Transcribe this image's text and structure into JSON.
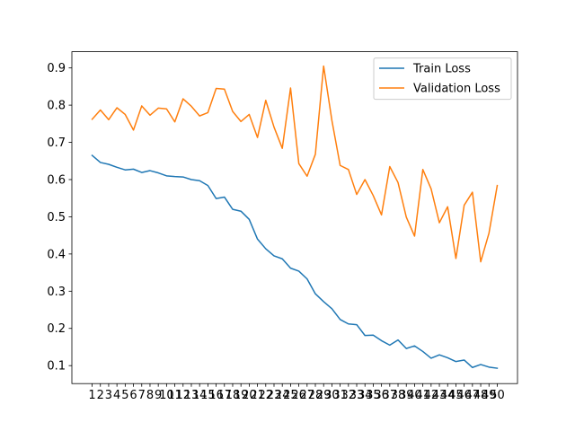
{
  "chart_data": {
    "type": "line",
    "title": "",
    "xlabel": "",
    "ylabel": "",
    "x": [
      1,
      2,
      3,
      4,
      5,
      6,
      7,
      8,
      9,
      10,
      11,
      12,
      13,
      14,
      15,
      16,
      17,
      18,
      19,
      20,
      21,
      22,
      23,
      24,
      25,
      26,
      27,
      28,
      29,
      30,
      31,
      32,
      33,
      34,
      35,
      36,
      37,
      38,
      39,
      40,
      41,
      42,
      43,
      44,
      45,
      46,
      47,
      48,
      49,
      50
    ],
    "xlim": [
      -1.45,
      52.45
    ],
    "ylim": [
      0.0517,
      0.9436
    ],
    "yticks": [
      0.1,
      0.2,
      0.3,
      0.4,
      0.5,
      0.6,
      0.7,
      0.8,
      0.9
    ],
    "grid": false,
    "legend_position": "top-right",
    "series": [
      {
        "name": "Train Loss",
        "color": "#1f77b4",
        "values": [
          0.665,
          0.646,
          0.641,
          0.633,
          0.626,
          0.628,
          0.619,
          0.624,
          0.618,
          0.61,
          0.608,
          0.607,
          0.6,
          0.597,
          0.584,
          0.549,
          0.553,
          0.52,
          0.515,
          0.493,
          0.44,
          0.414,
          0.395,
          0.387,
          0.362,
          0.354,
          0.333,
          0.293,
          0.272,
          0.253,
          0.224,
          0.212,
          0.21,
          0.181,
          0.182,
          0.167,
          0.155,
          0.169,
          0.146,
          0.153,
          0.138,
          0.12,
          0.129,
          0.121,
          0.111,
          0.115,
          0.095,
          0.103,
          0.096,
          0.093
        ]
      },
      {
        "name": "Validation Loss",
        "color": "#ff7f0e",
        "values": [
          0.762,
          0.787,
          0.761,
          0.793,
          0.775,
          0.733,
          0.798,
          0.773,
          0.792,
          0.79,
          0.755,
          0.817,
          0.797,
          0.771,
          0.78,
          0.845,
          0.843,
          0.783,
          0.756,
          0.775,
          0.713,
          0.813,
          0.741,
          0.684,
          0.846,
          0.643,
          0.609,
          0.668,
          0.905,
          0.759,
          0.638,
          0.627,
          0.56,
          0.6,
          0.557,
          0.505,
          0.635,
          0.592,
          0.499,
          0.448,
          0.627,
          0.575,
          0.484,
          0.527,
          0.388,
          0.531,
          0.566,
          0.379,
          0.456,
          0.584
        ]
      }
    ]
  }
}
